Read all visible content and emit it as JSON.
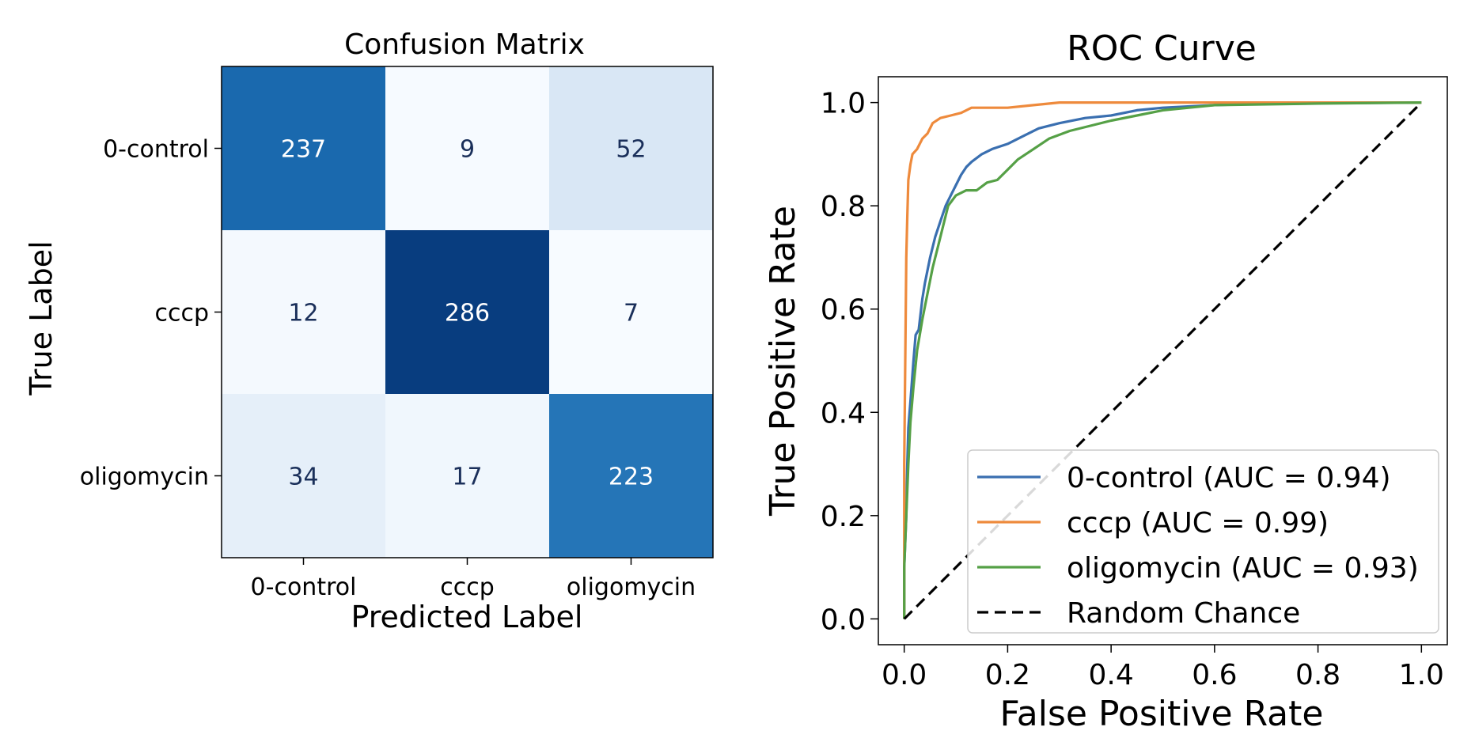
{
  "chart_data": [
    {
      "type": "heatmap",
      "title": "Confusion Matrix",
      "xlabel": "Predicted Label",
      "ylabel": "True Label",
      "x_categories": [
        "0-control",
        "cccp",
        "oligomycin"
      ],
      "y_categories": [
        "0-control",
        "cccp",
        "oligomycin"
      ],
      "values": [
        [
          237,
          9,
          52
        ],
        [
          12,
          286,
          7
        ],
        [
          34,
          17,
          223
        ]
      ],
      "colormap": "Blues",
      "vmin": 7,
      "vmax": 286
    },
    {
      "type": "line",
      "title": "ROC Curve",
      "xlabel": "False Positive Rate",
      "ylabel": "True Positive Rate",
      "xlim": [
        -0.05,
        1.05
      ],
      "ylim": [
        -0.05,
        1.05
      ],
      "xticks": [
        "0.0",
        "0.2",
        "0.4",
        "0.6",
        "0.8",
        "1.0"
      ],
      "yticks": [
        "0.0",
        "0.2",
        "0.4",
        "0.6",
        "0.8",
        "1.0"
      ],
      "legend_position": "lower-right",
      "series": [
        {
          "name": "0-control (AUC = 0.94)",
          "color": "#3a6fb0",
          "style": "solid",
          "points": [
            [
              0,
              0
            ],
            [
              0,
              0.1
            ],
            [
              0.004,
              0.2
            ],
            [
              0.006,
              0.3
            ],
            [
              0.008,
              0.37
            ],
            [
              0.012,
              0.42
            ],
            [
              0.018,
              0.5
            ],
            [
              0.022,
              0.55
            ],
            [
              0.028,
              0.56
            ],
            [
              0.035,
              0.62
            ],
            [
              0.04,
              0.65
            ],
            [
              0.05,
              0.7
            ],
            [
              0.06,
              0.74
            ],
            [
              0.07,
              0.77
            ],
            [
              0.08,
              0.8
            ],
            [
              0.09,
              0.82
            ],
            [
              0.1,
              0.84
            ],
            [
              0.11,
              0.86
            ],
            [
              0.12,
              0.875
            ],
            [
              0.13,
              0.885
            ],
            [
              0.15,
              0.9
            ],
            [
              0.17,
              0.91
            ],
            [
              0.2,
              0.92
            ],
            [
              0.23,
              0.935
            ],
            [
              0.26,
              0.95
            ],
            [
              0.3,
              0.96
            ],
            [
              0.35,
              0.97
            ],
            [
              0.4,
              0.975
            ],
            [
              0.45,
              0.985
            ],
            [
              0.5,
              0.99
            ],
            [
              0.6,
              0.995
            ],
            [
              0.7,
              0.998
            ],
            [
              1,
              1
            ]
          ]
        },
        {
          "name": "cccp (AUC = 0.99)",
          "color": "#ee8a3c",
          "style": "solid",
          "points": [
            [
              0,
              0
            ],
            [
              0,
              0.3
            ],
            [
              0.002,
              0.5
            ],
            [
              0.004,
              0.7
            ],
            [
              0.006,
              0.78
            ],
            [
              0.008,
              0.85
            ],
            [
              0.012,
              0.88
            ],
            [
              0.016,
              0.9
            ],
            [
              0.025,
              0.91
            ],
            [
              0.035,
              0.93
            ],
            [
              0.045,
              0.94
            ],
            [
              0.055,
              0.96
            ],
            [
              0.07,
              0.97
            ],
            [
              0.09,
              0.975
            ],
            [
              0.11,
              0.98
            ],
            [
              0.13,
              0.99
            ],
            [
              0.2,
              0.99
            ],
            [
              0.25,
              0.995
            ],
            [
              0.3,
              1
            ],
            [
              1,
              1
            ]
          ]
        },
        {
          "name": "oligomycin (AUC = 0.93)",
          "color": "#55a046",
          "style": "solid",
          "points": [
            [
              0,
              0
            ],
            [
              0,
              0.1
            ],
            [
              0.004,
              0.2
            ],
            [
              0.008,
              0.3
            ],
            [
              0.012,
              0.38
            ],
            [
              0.018,
              0.45
            ],
            [
              0.025,
              0.52
            ],
            [
              0.035,
              0.58
            ],
            [
              0.045,
              0.63
            ],
            [
              0.055,
              0.68
            ],
            [
              0.065,
              0.72
            ],
            [
              0.075,
              0.76
            ],
            [
              0.085,
              0.8
            ],
            [
              0.1,
              0.82
            ],
            [
              0.12,
              0.83
            ],
            [
              0.14,
              0.83
            ],
            [
              0.16,
              0.845
            ],
            [
              0.18,
              0.85
            ],
            [
              0.2,
              0.87
            ],
            [
              0.22,
              0.89
            ],
            [
              0.25,
              0.91
            ],
            [
              0.28,
              0.93
            ],
            [
              0.32,
              0.945
            ],
            [
              0.36,
              0.955
            ],
            [
              0.4,
              0.965
            ],
            [
              0.45,
              0.975
            ],
            [
              0.5,
              0.985
            ],
            [
              0.55,
              0.99
            ],
            [
              0.6,
              0.995
            ],
            [
              0.8,
              0.998
            ],
            [
              1,
              1
            ]
          ]
        },
        {
          "name": "Random Chance",
          "color": "#000000",
          "style": "dashed",
          "points": [
            [
              0,
              0
            ],
            [
              1,
              1
            ]
          ]
        }
      ]
    }
  ]
}
